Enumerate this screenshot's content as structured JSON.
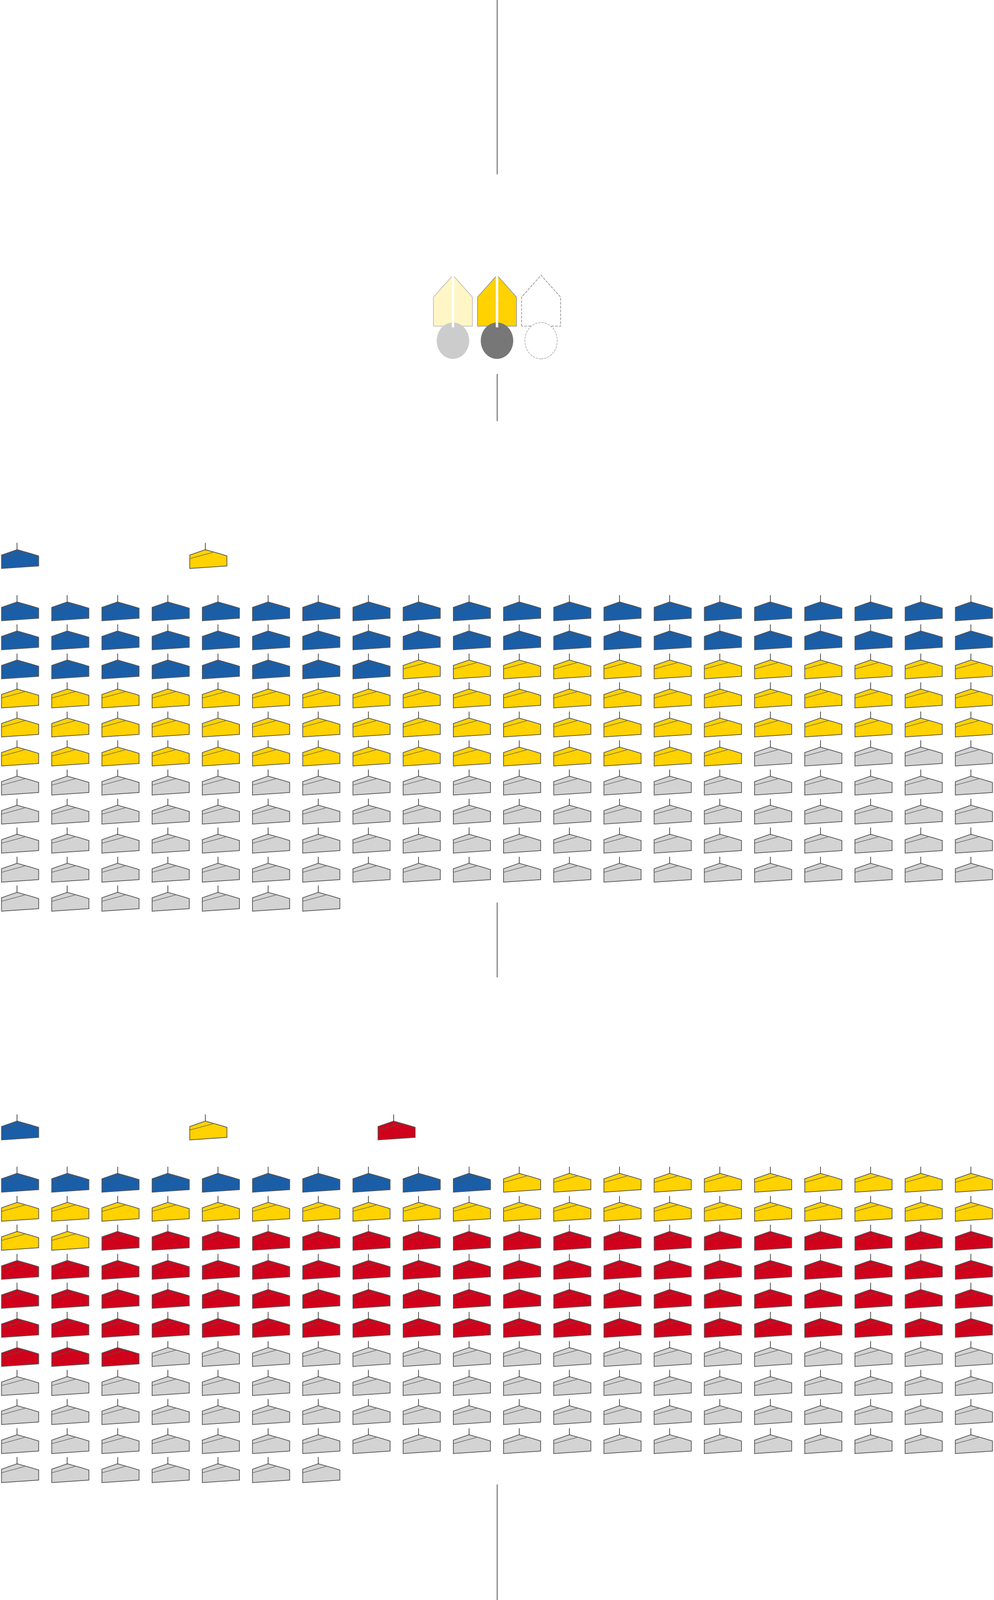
{
  "chart_data": [
    {
      "type": "waffle",
      "values": [
        48,
        67,
        92
      ],
      "colors": [
        "#1a5ea8",
        "#ffd200",
        "#d3d3d3"
      ]
    },
    {
      "type": "waffle",
      "values": [
        10,
        32,
        81,
        84
      ],
      "colors": [
        "#1a5ea8",
        "#ffd200",
        "#d0021b",
        "#d3d3d3"
      ]
    }
  ]
}
